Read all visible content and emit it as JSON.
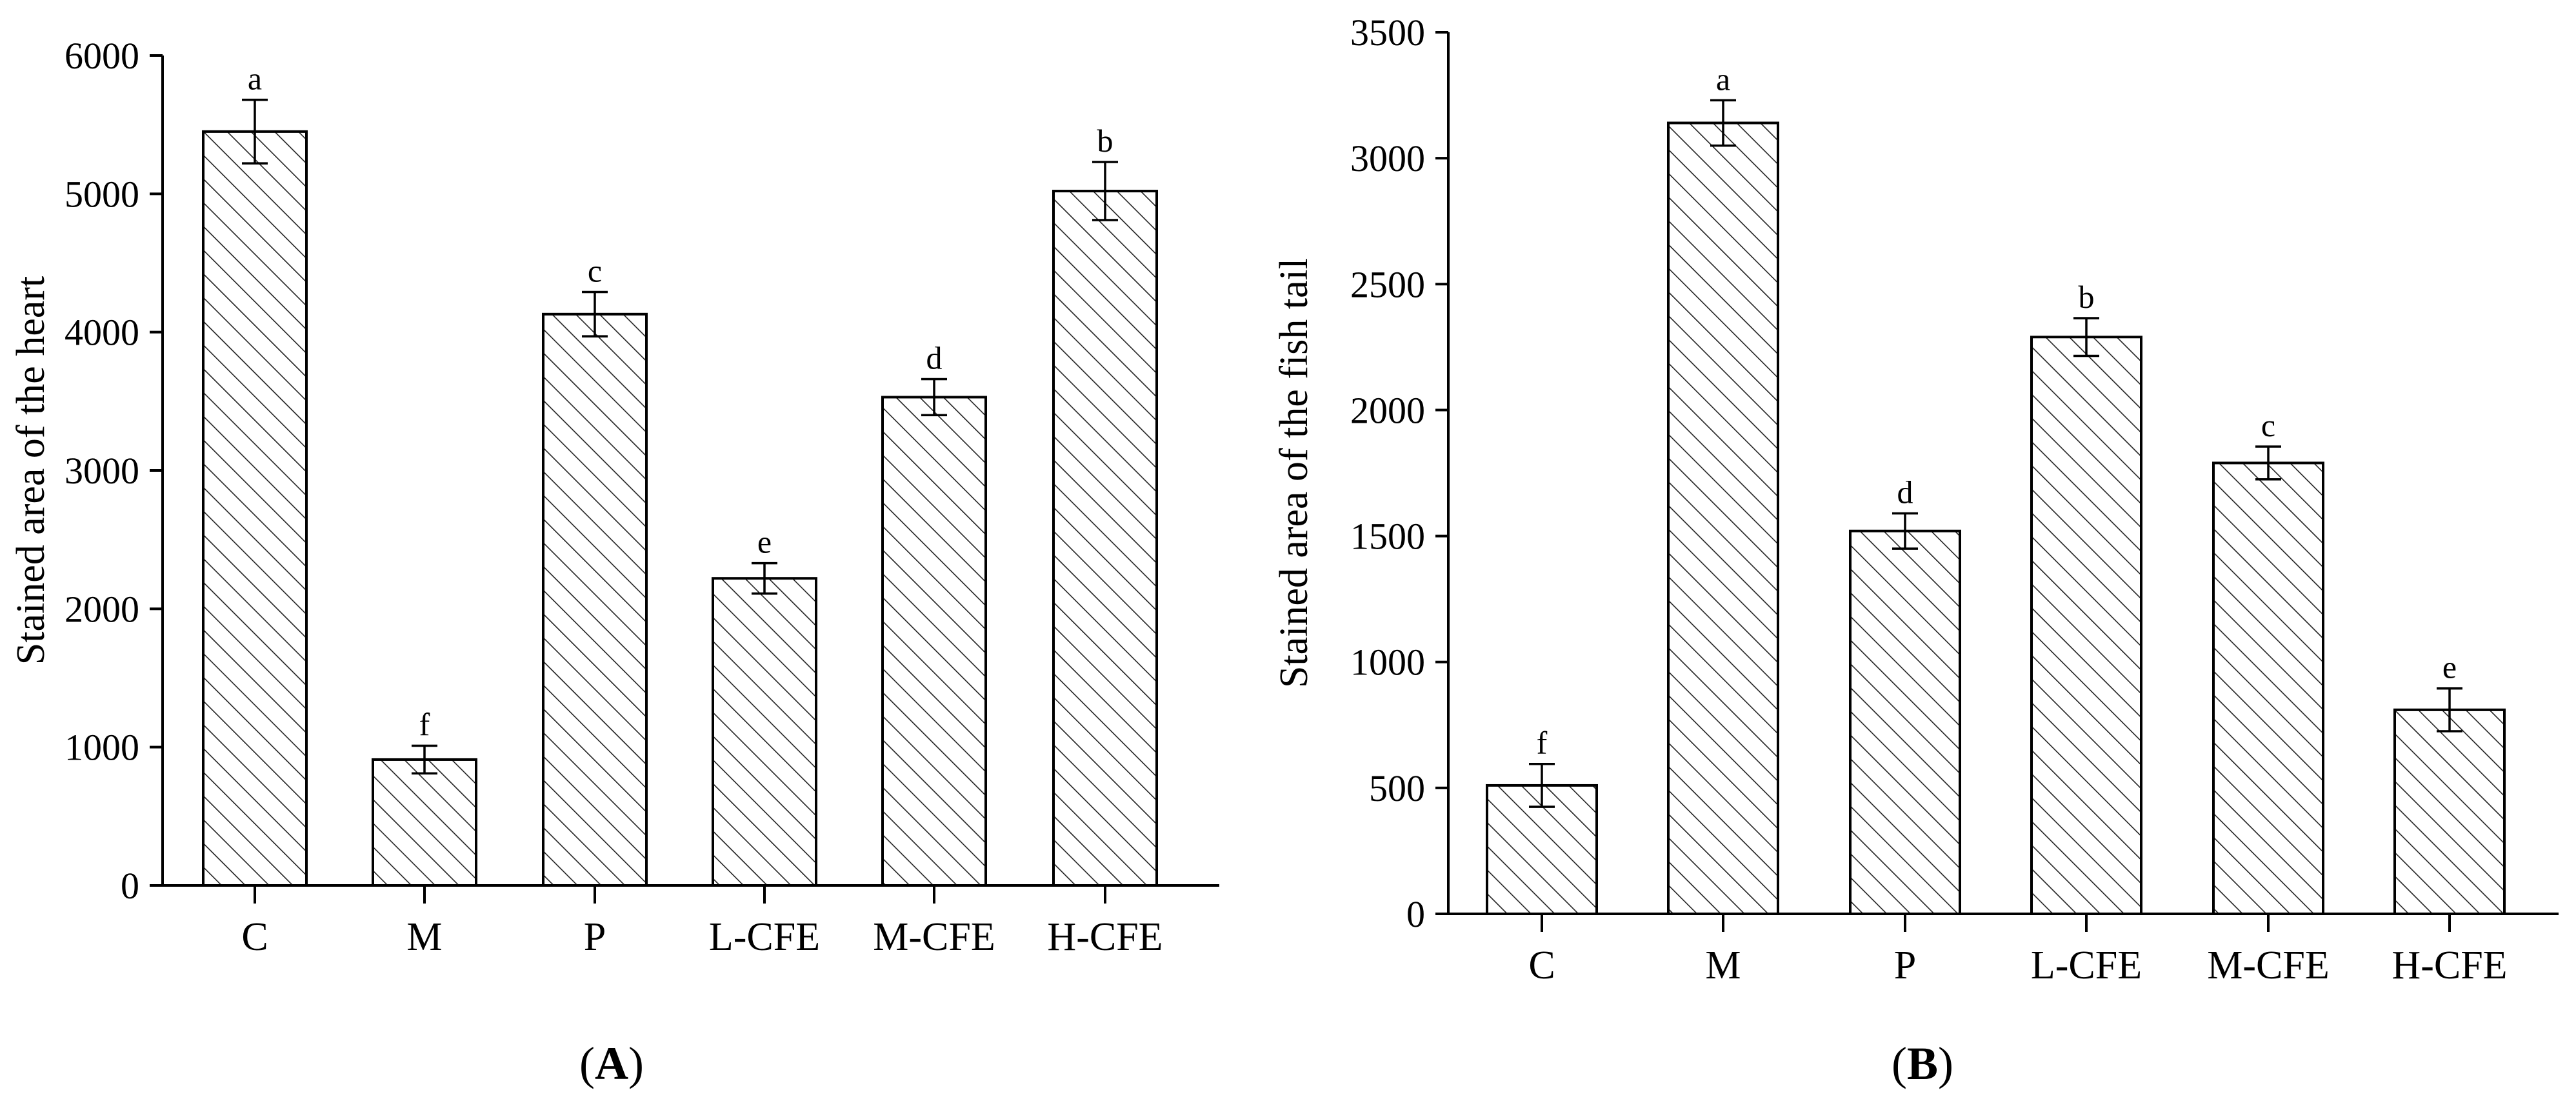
{
  "chart_data": [
    {
      "type": "bar",
      "panel_label": "A",
      "ylabel": "Stained area of the heart",
      "xlabel": "",
      "ylim": [
        0,
        6000
      ],
      "yticks": [
        0,
        1000,
        2000,
        3000,
        4000,
        5000,
        6000
      ],
      "categories": [
        "C",
        "M",
        "P",
        "L-CFE",
        "M-CFE",
        "H-CFE"
      ],
      "values": [
        5450,
        910,
        4130,
        2220,
        3530,
        5020
      ],
      "errors": [
        230,
        100,
        160,
        110,
        130,
        210
      ],
      "significance_letters": [
        "a",
        "f",
        "c",
        "e",
        "d",
        "b"
      ],
      "fill_pattern": "diagonal-hatch"
    },
    {
      "type": "bar",
      "panel_label": "B",
      "ylabel": "Stained area of the fish tail",
      "xlabel": "",
      "ylim": [
        0,
        3500
      ],
      "yticks": [
        0,
        500,
        1000,
        1500,
        2000,
        2500,
        3000,
        3500
      ],
      "categories": [
        "C",
        "M",
        "P",
        "L-CFE",
        "M-CFE",
        "H-CFE"
      ],
      "values": [
        510,
        3140,
        1520,
        2290,
        1790,
        810
      ],
      "errors": [
        85,
        90,
        70,
        75,
        65,
        85
      ],
      "significance_letters": [
        "f",
        "a",
        "d",
        "b",
        "c",
        "e"
      ],
      "fill_pattern": "diagonal-hatch"
    }
  ]
}
